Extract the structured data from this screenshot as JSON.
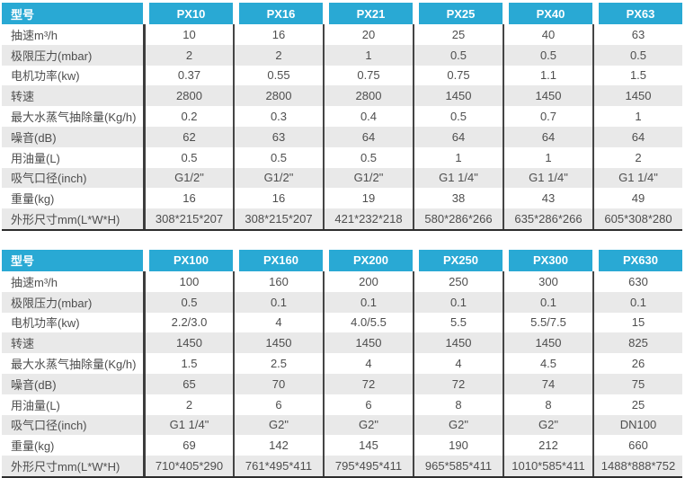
{
  "colors": {
    "header_bg": "#29a9d4",
    "header_text": "#ffffff",
    "row_bg": "#ffffff",
    "row_alt_bg": "#e9e9e9",
    "column_divider": "#454545",
    "table_bottom_border": "#2d2d2d",
    "body_text": "#4e4e4e"
  },
  "tables": [
    {
      "name": "pump-spec-table-small-models",
      "header": {
        "label": "型号",
        "models": [
          "PX10",
          "PX16",
          "PX21",
          "PX25",
          "PX40",
          "PX63"
        ]
      },
      "rows": [
        {
          "label": "抽速m³/h",
          "values": [
            "10",
            "16",
            "20",
            "25",
            "40",
            "63"
          ]
        },
        {
          "label": "极限压力(mbar)",
          "values": [
            "2",
            "2",
            "1",
            "0.5",
            "0.5",
            "0.5"
          ]
        },
        {
          "label": "电机功率(kw)",
          "values": [
            "0.37",
            "0.55",
            "0.75",
            "0.75",
            "1.1",
            "1.5"
          ]
        },
        {
          "label": "转速",
          "values": [
            "2800",
            "2800",
            "2800",
            "1450",
            "1450",
            "1450"
          ]
        },
        {
          "label": "最大水蒸气抽除量(Kg/h)",
          "values": [
            "0.2",
            "0.3",
            "0.4",
            "0.5",
            "0.7",
            "1"
          ]
        },
        {
          "label": "噪音(dB)",
          "values": [
            "62",
            "63",
            "64",
            "64",
            "64",
            "64"
          ]
        },
        {
          "label": "用油量(L)",
          "values": [
            "0.5",
            "0.5",
            "0.5",
            "1",
            "1",
            "2"
          ]
        },
        {
          "label": "吸气口径(inch)",
          "values": [
            "G1/2\"",
            "G1/2\"",
            "G1/2\"",
            "G1 1/4\"",
            "G1 1/4\"",
            "G1 1/4\""
          ]
        },
        {
          "label": "重量(kg)",
          "values": [
            "16",
            "16",
            "19",
            "38",
            "43",
            "49"
          ]
        },
        {
          "label": "外形尺寸mm(L*W*H)",
          "values": [
            "308*215*207",
            "308*215*207",
            "421*232*218",
            "580*286*266",
            "635*286*266",
            "605*308*280"
          ]
        }
      ]
    },
    {
      "name": "pump-spec-table-large-models",
      "header": {
        "label": "型号",
        "models": [
          "PX100",
          "PX160",
          "PX200",
          "PX250",
          "PX300",
          "PX630"
        ]
      },
      "rows": [
        {
          "label": "抽速m³/h",
          "values": [
            "100",
            "160",
            "200",
            "250",
            "300",
            "630"
          ]
        },
        {
          "label": "极限压力(mbar)",
          "values": [
            "0.5",
            "0.1",
            "0.1",
            "0.1",
            "0.1",
            "0.1"
          ]
        },
        {
          "label": "电机功率(kw)",
          "values": [
            "2.2/3.0",
            "4",
            "4.0/5.5",
            "5.5",
            "5.5/7.5",
            "15"
          ]
        },
        {
          "label": "转速",
          "values": [
            "1450",
            "1450",
            "1450",
            "1450",
            "1450",
            "825"
          ]
        },
        {
          "label": "最大水蒸气抽除量(Kg/h)",
          "values": [
            "1.5",
            "2.5",
            "4",
            "4",
            "4.5",
            "26"
          ]
        },
        {
          "label": "噪音(dB)",
          "values": [
            "65",
            "70",
            "72",
            "72",
            "74",
            "75"
          ]
        },
        {
          "label": "用油量(L)",
          "values": [
            "2",
            "6",
            "6",
            "8",
            "8",
            "25"
          ]
        },
        {
          "label": "吸气口径(inch)",
          "values": [
            "G1 1/4\"",
            "G2\"",
            "G2\"",
            "G2\"",
            "G2\"",
            "DN100"
          ]
        },
        {
          "label": "重量(kg)",
          "values": [
            "69",
            "142",
            "145",
            "190",
            "212",
            "660"
          ]
        },
        {
          "label": "外形尺寸mm(L*W*H)",
          "values": [
            "710*405*290",
            "761*495*411",
            "795*495*411",
            "965*585*411",
            "1010*585*411",
            "1488*888*752"
          ]
        }
      ]
    }
  ]
}
